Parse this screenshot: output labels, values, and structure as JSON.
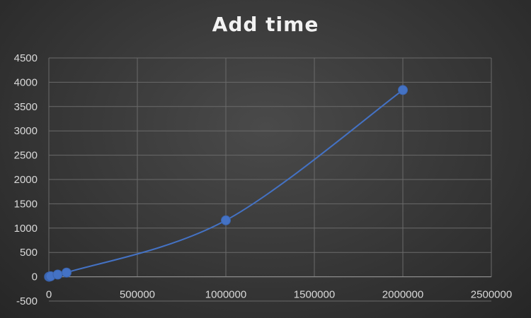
{
  "chart_data": {
    "type": "scatter",
    "title": "Add time",
    "xlabel": "",
    "ylabel": "",
    "xlim": [
      0,
      2500000
    ],
    "ylim": [
      -500,
      4500
    ],
    "x_ticks": [
      "0",
      "500000",
      "1000000",
      "1500000",
      "2000000",
      "2500000"
    ],
    "y_ticks": [
      "-500",
      "0",
      "500",
      "1000",
      "1500",
      "2000",
      "2500",
      "3000",
      "3500",
      "4000",
      "4500"
    ],
    "grid": true,
    "smooth_line": true,
    "series": [
      {
        "color": "#4472c4",
        "points": [
          {
            "x": 1000,
            "y": 0
          },
          {
            "x": 5000,
            "y": 5
          },
          {
            "x": 10000,
            "y": 10
          },
          {
            "x": 50000,
            "y": 45
          },
          {
            "x": 100000,
            "y": 85
          },
          {
            "x": 1000000,
            "y": 1160
          },
          {
            "x": 2000000,
            "y": 3840
          }
        ]
      }
    ]
  }
}
